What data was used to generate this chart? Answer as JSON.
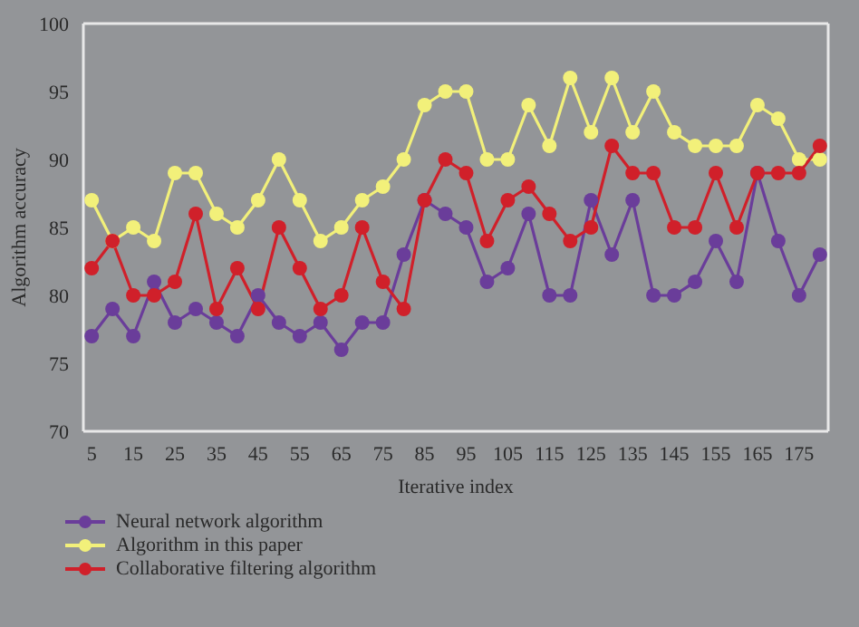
{
  "chart_data": {
    "type": "line",
    "xlabel": "Iterative index",
    "ylabel": "Algorithm accuracy",
    "x": [
      5,
      10,
      15,
      20,
      25,
      30,
      35,
      40,
      45,
      50,
      55,
      60,
      65,
      70,
      75,
      80,
      85,
      90,
      95,
      100,
      105,
      110,
      115,
      120,
      125,
      130,
      135,
      140,
      145,
      150,
      155,
      160,
      165,
      170,
      175,
      180
    ],
    "series": [
      {
        "name": "Neural network algorithm",
        "color": "#6a3d9a",
        "values": [
          77,
          79,
          77,
          81,
          78,
          79,
          78,
          77,
          80,
          78,
          77,
          78,
          76,
          78,
          78,
          83,
          87,
          86,
          85,
          81,
          82,
          86,
          80,
          80,
          87,
          83,
          87,
          80,
          80,
          81,
          84,
          81,
          89,
          84,
          80,
          83
        ]
      },
      {
        "name": "Algorithm in this paper",
        "color": "#f2f07a",
        "values": [
          87,
          84,
          85,
          84,
          89,
          89,
          86,
          85,
          87,
          90,
          87,
          84,
          85,
          87,
          88,
          90,
          94,
          95,
          95,
          90,
          90,
          94,
          91,
          96,
          92,
          96,
          92,
          95,
          92,
          91,
          91,
          91,
          94,
          93,
          90,
          90
        ]
      },
      {
        "name": "Collaborative filtering algorithm",
        "color": "#d0202a",
        "values": [
          82,
          84,
          80,
          80,
          81,
          86,
          79,
          82,
          79,
          85,
          82,
          79,
          80,
          85,
          81,
          79,
          87,
          90,
          89,
          84,
          87,
          88,
          86,
          84,
          85,
          91,
          89,
          89,
          85,
          85,
          89,
          85,
          89,
          89,
          89,
          91
        ]
      }
    ],
    "xlim": [
      3,
      182
    ],
    "xticks": [
      5,
      15,
      25,
      35,
      45,
      55,
      65,
      75,
      85,
      95,
      105,
      115,
      125,
      135,
      145,
      155,
      165,
      175
    ],
    "ylim": [
      70,
      100
    ],
    "yticks": [
      70,
      75,
      80,
      85,
      90,
      95,
      100
    ],
    "grid": false,
    "legend": "bottom left",
    "marker": "circle",
    "line_style": "solid"
  }
}
